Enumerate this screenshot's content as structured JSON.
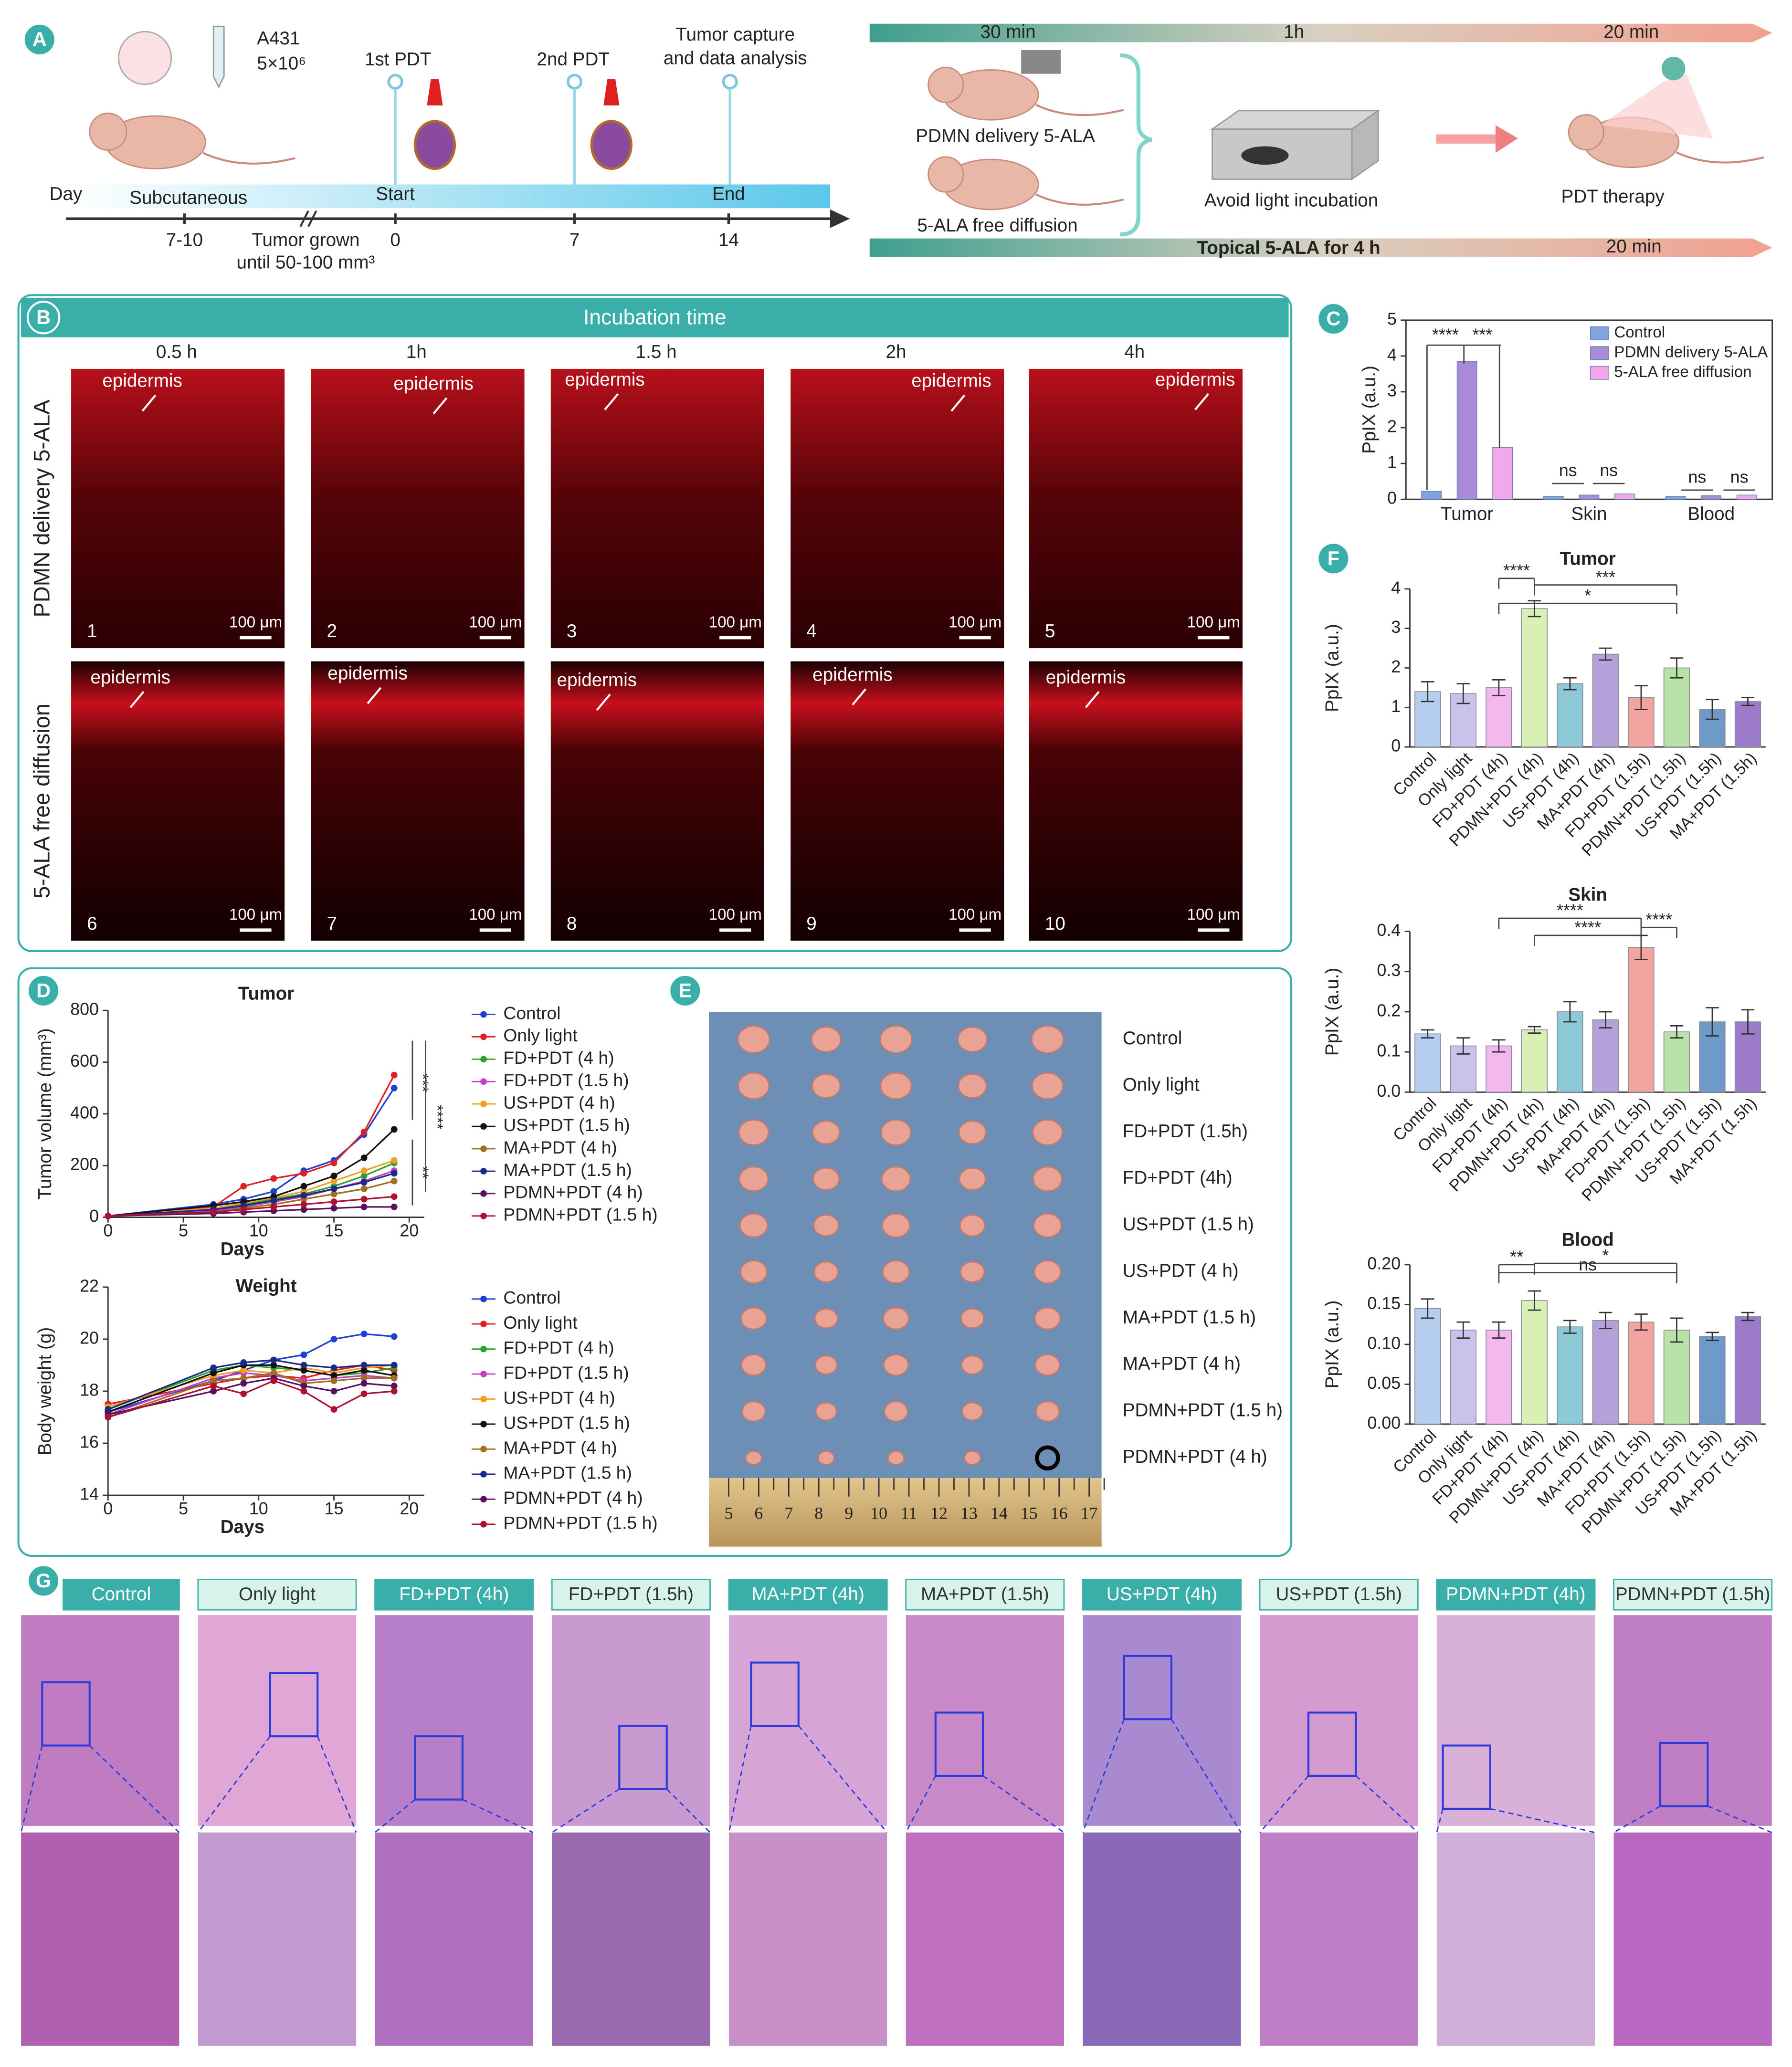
{
  "panel_letters": [
    "A",
    "B",
    "C",
    "D",
    "E",
    "F",
    "G"
  ],
  "panel_a": {
    "cell_line": "A431",
    "cell_count": "5×10⁶",
    "pdt1": "1st PDT",
    "pdt2": "2nd PDT",
    "capture": [
      "Tumor capture",
      "and data analysis"
    ],
    "day": "Day",
    "route": "Subcutaneous",
    "start": "Start",
    "end": "End",
    "day_labels": [
      "7-10",
      "0",
      "7",
      "14"
    ],
    "grown": [
      "Tumor grown",
      "until 50-100 mm³"
    ],
    "times": [
      "30 min",
      "1h",
      "20 min"
    ],
    "groups": [
      "PDMN delivery 5-ALA",
      "5-ALA free diffusion"
    ],
    "incubation": "Avoid light incubation",
    "therapy": "PDT therapy",
    "topical": "Topical 5-ALA for 4 h",
    "topical_time": "20 min"
  },
  "panel_b": {
    "title": "Incubation time",
    "times": [
      "0.5 h",
      "1h",
      "1.5 h",
      "2h",
      "4h"
    ],
    "rows": [
      "PDMN delivery 5-ALA",
      "5-ALA free diffusion"
    ],
    "epidermis": "epidermis",
    "scale": "100 μm",
    "numbers": [
      "1",
      "2",
      "3",
      "4",
      "5",
      "6",
      "7",
      "8",
      "9",
      "10"
    ]
  },
  "panel_e": {
    "groups": [
      "Control",
      "Only light",
      "FD+PDT (1.5h)",
      "FD+PDT (4h)",
      "US+PDT (1.5 h)",
      "US+PDT (4 h)",
      "MA+PDT (1.5 h)",
      "MA+PDT (4 h)",
      "PDMN+PDT (1.5 h)",
      "PDMN+PDT (4 h)"
    ],
    "ruler": [
      "5",
      "6",
      "7",
      "8",
      "9",
      "10",
      "11",
      "12",
      "13",
      "14",
      "15",
      "16",
      "17"
    ]
  },
  "panel_g": {
    "groups": [
      "Control",
      "Only light",
      "FD+PDT (4h)",
      "FD+PDT (1.5h)",
      "MA+PDT (4h)",
      "MA+PDT (1.5h)",
      "US+PDT (4h)",
      "US+PDT (1.5h)",
      "PDMN+PDT (4h)",
      "PDMN+PDT (1.5h)"
    ]
  },
  "chart_data": [
    {
      "type": "bar",
      "ylabel": "PpIX (a.u.)",
      "categories": [
        "Tumor",
        "Skin",
        "Blood"
      ],
      "series": [
        {
          "name": "Control",
          "color": "#7fa4e0",
          "values": [
            0.22,
            0.08,
            0.08
          ]
        },
        {
          "name": "PDMN delivery 5-ALA",
          "color": "#a98ad8",
          "values": [
            3.85,
            0.12,
            0.1
          ]
        },
        {
          "name": "5-ALA free diffusion",
          "color": "#f3a8ec",
          "values": [
            1.45,
            0.15,
            0.12
          ]
        }
      ],
      "ylim": [
        0,
        5
      ],
      "yticks": [
        0,
        1,
        2,
        3,
        4,
        5
      ],
      "legend": "upper right",
      "annotations": [
        "****",
        "***",
        "ns",
        "ns",
        "ns",
        "ns"
      ]
    },
    {
      "type": "bar",
      "title": "Tumor",
      "ylabel": "PpIX (a.u.)",
      "categories": [
        "Control",
        "Only light",
        "FD+PDT (4h)",
        "PDMN+PDT (4h)",
        "US+PDT (4h)",
        "MA+PDT (4h)",
        "FD+PDT (1.5h)",
        "PDMN+PDT (1.5h)",
        "US+PDT (1.5h)",
        "MA+PDT (1.5h)"
      ],
      "values": [
        1.4,
        1.35,
        1.5,
        3.5,
        1.6,
        2.35,
        1.25,
        2.0,
        0.95,
        1.15
      ],
      "errors": [
        0.25,
        0.25,
        0.2,
        0.2,
        0.15,
        0.15,
        0.3,
        0.25,
        0.25,
        0.1
      ],
      "colors": [
        "#b5cdef",
        "#c9c2ea",
        "#f4b7ee",
        "#d9f0b5",
        "#8ec9d8",
        "#b4a1d9",
        "#f2a4a0",
        "#b9e2a8",
        "#6d9ac9",
        "#9c7cc9"
      ],
      "ylim": [
        0,
        4
      ],
      "yticks": [
        0,
        1,
        2,
        3,
        4
      ],
      "annotations": [
        "****",
        "***",
        "*"
      ]
    },
    {
      "type": "bar",
      "title": "Skin",
      "ylabel": "PpIX (a.u.)",
      "categories": [
        "Control",
        "Only light",
        "FD+PDT (4h)",
        "PDMN+PDT (4h)",
        "US+PDT (4h)",
        "MA+PDT (4h)",
        "FD+PDT (1.5h)",
        "PDMN+PDT (1.5h)",
        "US+PDT (1.5h)",
        "MA+PDT (1.5h)"
      ],
      "values": [
        0.145,
        0.115,
        0.115,
        0.155,
        0.2,
        0.18,
        0.36,
        0.15,
        0.175,
        0.175
      ],
      "errors": [
        0.01,
        0.02,
        0.015,
        0.008,
        0.025,
        0.02,
        0.03,
        0.015,
        0.035,
        0.03
      ],
      "colors": [
        "#b5cdef",
        "#c9c2ea",
        "#f4b7ee",
        "#d9f0b5",
        "#8ec9d8",
        "#b4a1d9",
        "#f2a4a0",
        "#b9e2a8",
        "#6d9ac9",
        "#9c7cc9"
      ],
      "ylim": [
        0,
        0.4
      ],
      "yticks": [
        {
          "value": 0,
          "label": "0.0"
        },
        0.1,
        0.2,
        0.3,
        0.4
      ],
      "annotations": [
        "****",
        "****",
        "****"
      ]
    },
    {
      "type": "bar",
      "title": "Blood",
      "ylabel": "PpIX (a.u.)",
      "categories": [
        "Control",
        "Only light",
        "FD+PDT (4h)",
        "PDMN+PDT (4h)",
        "US+PDT (4h)",
        "MA+PDT (4h)",
        "FD+PDT (1.5h)",
        "PDMN+PDT (1.5h)",
        "US+PDT (1.5h)",
        "MA+PDT (1.5h)"
      ],
      "values": [
        0.145,
        0.118,
        0.118,
        0.155,
        0.122,
        0.13,
        0.128,
        0.118,
        0.11,
        0.135
      ],
      "errors": [
        0.012,
        0.01,
        0.01,
        0.012,
        0.008,
        0.01,
        0.01,
        0.015,
        0.005,
        0.005
      ],
      "colors": [
        "#b5cdef",
        "#c9c2ea",
        "#f4b7ee",
        "#d9f0b5",
        "#8ec9d8",
        "#b4a1d9",
        "#f2a4a0",
        "#b9e2a8",
        "#6d9ac9",
        "#9c7cc9"
      ],
      "ylim": [
        0,
        0.2
      ],
      "yticks": [
        {
          "value": 0,
          "label": "0.00"
        },
        {
          "value": 0.05,
          "label": "0.05"
        },
        {
          "value": 0.1,
          "label": "0.10"
        },
        {
          "value": 0.15,
          "label": "0.15"
        },
        {
          "value": 0.2,
          "label": "0.20"
        }
      ],
      "annotations": [
        "**",
        "ns",
        "*"
      ]
    },
    {
      "type": "line",
      "title": "Tumor",
      "xlabel": "Days",
      "ylabel": "Tumor volume (mm³)",
      "legend": "outside right",
      "x": [
        0,
        7,
        9,
        11,
        13,
        15,
        17,
        19
      ],
      "xlim": [
        0,
        21
      ],
      "xticks": [
        0,
        5,
        10,
        15,
        20
      ],
      "ylim": [
        0,
        800
      ],
      "yticks": [
        0,
        200,
        400,
        600,
        800
      ],
      "annotations": [
        "***",
        "****",
        "**"
      ],
      "series": [
        {
          "name": "Control",
          "color": "#1f3fd6",
          "values": [
            5,
            50,
            70,
            100,
            180,
            220,
            320,
            500
          ]
        },
        {
          "name": "Only light",
          "color": "#e02020",
          "values": [
            5,
            40,
            120,
            150,
            170,
            210,
            330,
            550
          ]
        },
        {
          "name": "FD+PDT (4 h)",
          "color": "#2ca02c",
          "values": [
            5,
            30,
            50,
            70,
            90,
            120,
            160,
            210
          ]
        },
        {
          "name": "FD+PDT (1.5 h)",
          "color": "#c040c0",
          "values": [
            5,
            25,
            40,
            60,
            80,
            110,
            140,
            180
          ]
        },
        {
          "name": "US+PDT (4 h)",
          "color": "#f0a020",
          "values": [
            5,
            35,
            55,
            75,
            100,
            140,
            180,
            220
          ]
        },
        {
          "name": "US+PDT (1.5 h)",
          "color": "#111111",
          "values": [
            5,
            45,
            60,
            80,
            120,
            160,
            230,
            340
          ]
        },
        {
          "name": "MA+PDT (4 h)",
          "color": "#a07020",
          "values": [
            5,
            20,
            35,
            50,
            70,
            90,
            110,
            140
          ]
        },
        {
          "name": "MA+PDT (1.5 h)",
          "color": "#1a2a8a",
          "values": [
            5,
            30,
            45,
            65,
            85,
            110,
            135,
            170
          ]
        },
        {
          "name": "PDMN+PDT (4 h)",
          "color": "#5a1060",
          "values": [
            5,
            15,
            20,
            25,
            30,
            35,
            40,
            40
          ]
        },
        {
          "name": "PDMN+PDT (1.5 h)",
          "color": "#b01030",
          "values": [
            5,
            20,
            30,
            40,
            50,
            60,
            70,
            80
          ]
        }
      ]
    },
    {
      "type": "line",
      "title": "Weight",
      "xlabel": "Days",
      "ylabel": "Body weight (g)",
      "legend": "outside right",
      "x": [
        0,
        7,
        9,
        11,
        13,
        15,
        17,
        19
      ],
      "xlim": [
        0,
        21
      ],
      "xticks": [
        0,
        5,
        10,
        15,
        20
      ],
      "ylim": [
        14,
        22
      ],
      "yticks": [
        14,
        16,
        18,
        20,
        22
      ],
      "series": [
        {
          "name": "Control",
          "color": "#1f3fd6",
          "values": [
            17.2,
            18.4,
            18.8,
            19.2,
            19.4,
            20,
            20.2,
            20.1
          ]
        },
        {
          "name": "Only light",
          "color": "#e02020",
          "values": [
            17.5,
            18.3,
            18.5,
            18.6,
            18.5,
            18.8,
            19,
            18.8
          ]
        },
        {
          "name": "FD+PDT (4 h)",
          "color": "#2ca02c",
          "values": [
            17.3,
            18.8,
            19,
            18.9,
            18.8,
            18.6,
            18.7,
            18.9
          ]
        },
        {
          "name": "FD+PDT (1.5 h)",
          "color": "#c040c0",
          "values": [
            17.1,
            18.5,
            18.7,
            18.6,
            18.4,
            18.5,
            18.6,
            18.5
          ]
        },
        {
          "name": "US+PDT (4 h)",
          "color": "#f0a020",
          "values": [
            17.4,
            18.6,
            18.8,
            18.7,
            18.9,
            18.7,
            18.9,
            19
          ]
        },
        {
          "name": "US+PDT (1.5 h)",
          "color": "#111111",
          "values": [
            17.2,
            18.7,
            19,
            19,
            18.8,
            18.6,
            18.8,
            18.6
          ]
        },
        {
          "name": "MA+PDT (4 h)",
          "color": "#a07020",
          "values": [
            17,
            18.4,
            18.5,
            18.7,
            18.3,
            18.4,
            18.5,
            18.5
          ]
        },
        {
          "name": "MA+PDT (1.5 h)",
          "color": "#1a2a8a",
          "values": [
            17.3,
            18.9,
            19.1,
            19.2,
            19,
            18.9,
            19,
            19
          ]
        },
        {
          "name": "PDMN+PDT (4 h)",
          "color": "#5a1060",
          "values": [
            17.1,
            18,
            18.3,
            18.5,
            18.2,
            18,
            18.3,
            18.2
          ]
        },
        {
          "name": "PDMN+PDT (1.5 h)",
          "color": "#b01030",
          "values": [
            17,
            18.2,
            17.9,
            18.4,
            18,
            17.3,
            17.9,
            18
          ]
        }
      ]
    }
  ]
}
